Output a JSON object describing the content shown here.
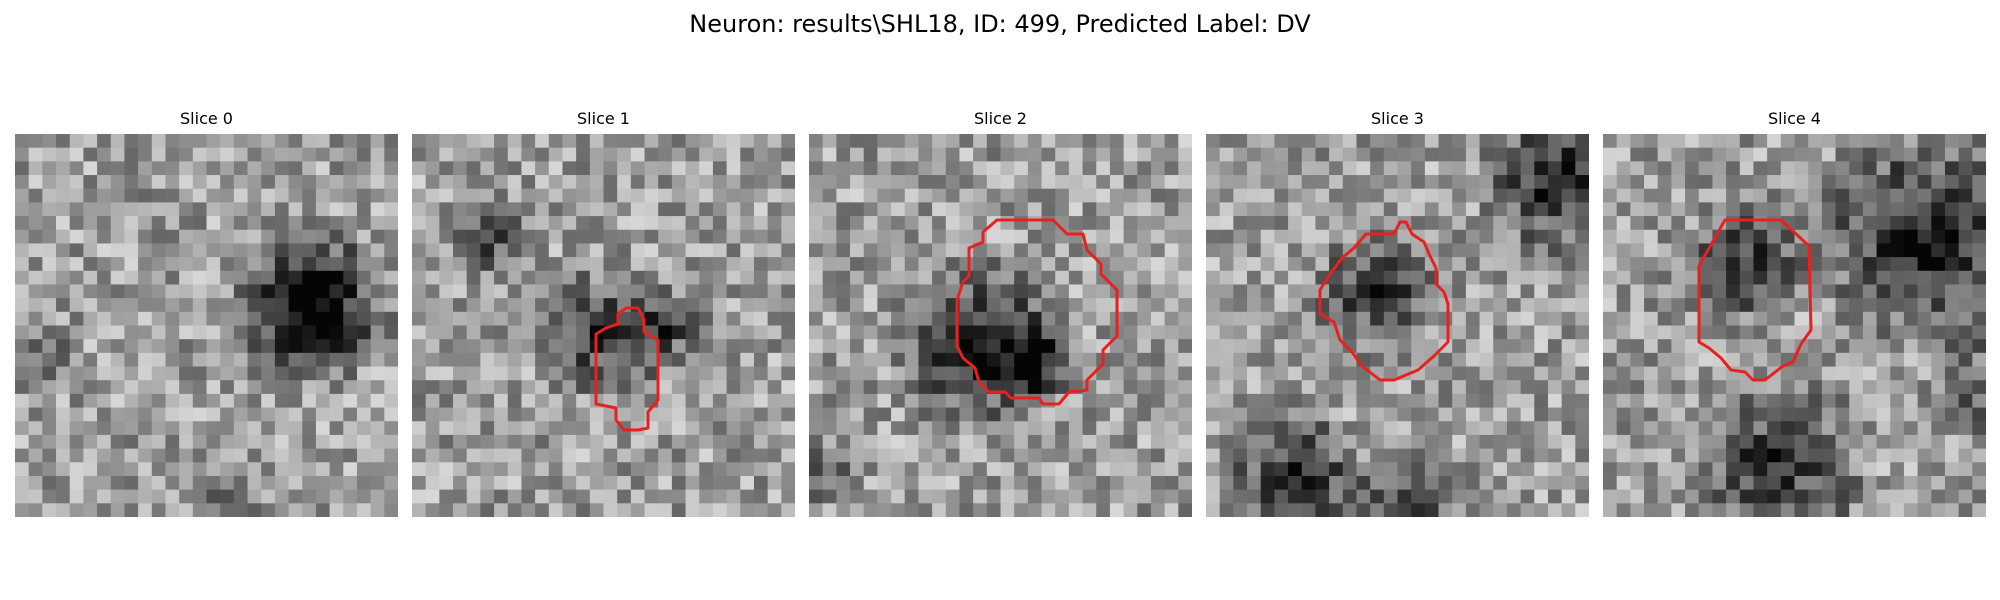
{
  "figure": {
    "title": "Neuron: results\\SHL18, ID: 499, Predicted Label: DV"
  },
  "colors": {
    "contour": "#e8211f",
    "background": "#ffffff",
    "text": "#000000"
  },
  "panels": [
    {
      "title": "Slice 0",
      "has_contour": false
    },
    {
      "title": "Slice 1",
      "has_contour": true
    },
    {
      "title": "Slice 2",
      "has_contour": true
    },
    {
      "title": "Slice 3",
      "has_contour": true
    },
    {
      "title": "Slice 4",
      "has_contour": true
    }
  ]
}
